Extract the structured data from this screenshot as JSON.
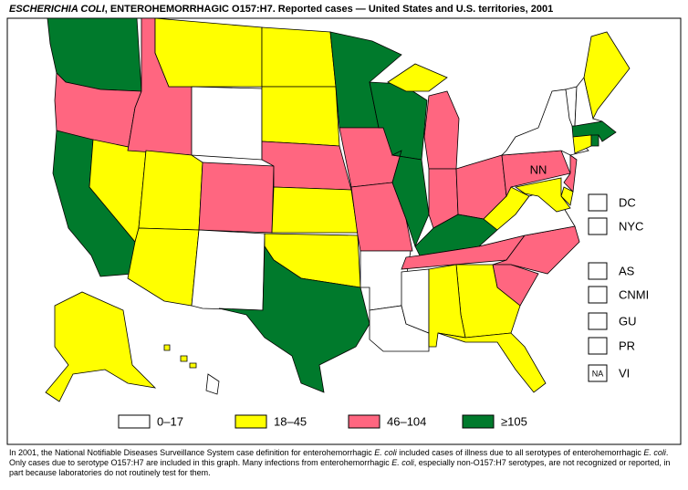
{
  "title": {
    "italic": "ESCHERICHIA COLI",
    "rest": ", ENTEROHEMORRHAGIC O157:H7. Reported cases — United States and U.S. territories, 2001"
  },
  "legend": [
    {
      "label": "0–17",
      "color": "#ffffff"
    },
    {
      "label": "18–45",
      "color": "#ffff00"
    },
    {
      "label": "46–104",
      "color": "#ff6680"
    },
    {
      "label": "≥105",
      "color": "#007a2c"
    }
  ],
  "region_classes": [
    3,
    2,
    3,
    1,
    2,
    1,
    0,
    1,
    2,
    1,
    0,
    1,
    1,
    2,
    1,
    1,
    3,
    3,
    2,
    2,
    0,
    0,
    0,
    3,
    3,
    2,
    2,
    2,
    3,
    2,
    2,
    2,
    1,
    1,
    1,
    1,
    0,
    2,
    0,
    2,
    1,
    1,
    3,
    1,
    0,
    3,
    0,
    1,
    1,
    0,
    1,
    1,
    1,
    1
  ],
  "map_labels": [
    "NN"
  ],
  "territories": [
    {
      "label": "DC",
      "box": ""
    },
    {
      "label": "NYC",
      "box": ""
    },
    {
      "label": "AS",
      "box": ""
    },
    {
      "label": "CNMI",
      "box": ""
    },
    {
      "label": "GU",
      "box": ""
    },
    {
      "label": "PR",
      "box": ""
    },
    {
      "label": "VI",
      "box": "NA"
    }
  ],
  "footnote": [
    "In 2001, the National Notifiable Diseases Surveillance System case definition for enterohemorrhagic ",
    "E. coli",
    " included cases of illness due to all serotypes of enterohemorrhagic ",
    "E. coli",
    ". Only cases due to serotype O157:H7 are included in this graph. Many infections from enterohemorrhagic ",
    "E. coli",
    ", especially non-O157:H7 serotypes, are not recognized or reported, in part because laboratories do not routinely test for them."
  ]
}
